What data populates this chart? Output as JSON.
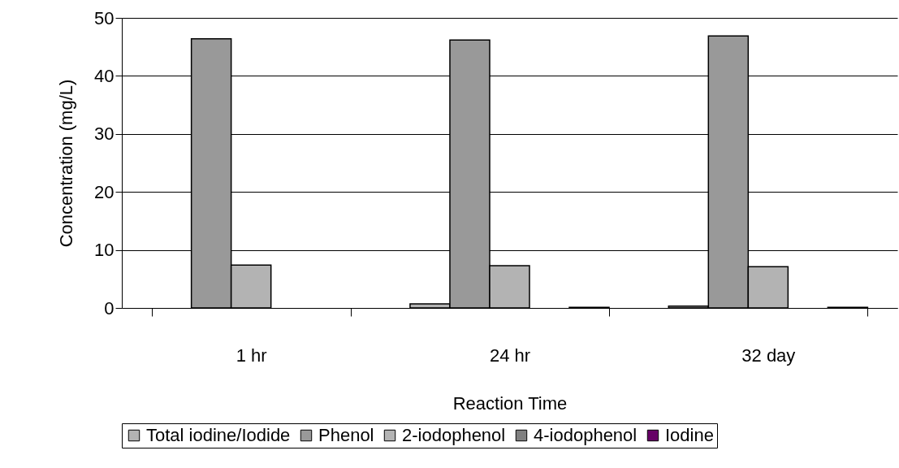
{
  "chart_data": {
    "type": "bar",
    "xlabel": "Reaction Time",
    "ylabel": "Concentration (mg/L)",
    "categories": [
      "1 hr",
      "24 hr",
      "32 day"
    ],
    "series": [
      {
        "name": "Total iodine/Iodide",
        "color": "#b3b3b3",
        "values": [
          null,
          0.7,
          0.3
        ]
      },
      {
        "name": "Phenol",
        "color": "#999999",
        "values": [
          46.4,
          46.2,
          46.9
        ]
      },
      {
        "name": "2-iodophenol",
        "color": "#b3b3b3",
        "values": [
          7.4,
          7.3,
          7.1
        ]
      },
      {
        "name": "4-iodophenol",
        "color": "#808080",
        "values": [
          null,
          null,
          null
        ]
      },
      {
        "name": "Iodine",
        "color": "#660066",
        "values": [
          null,
          0.1,
          0.1
        ]
      }
    ],
    "ylim": [
      0,
      50
    ],
    "yticks": [
      0,
      10,
      20,
      30,
      40,
      50
    ],
    "grid": "y",
    "legend": "bottom"
  }
}
